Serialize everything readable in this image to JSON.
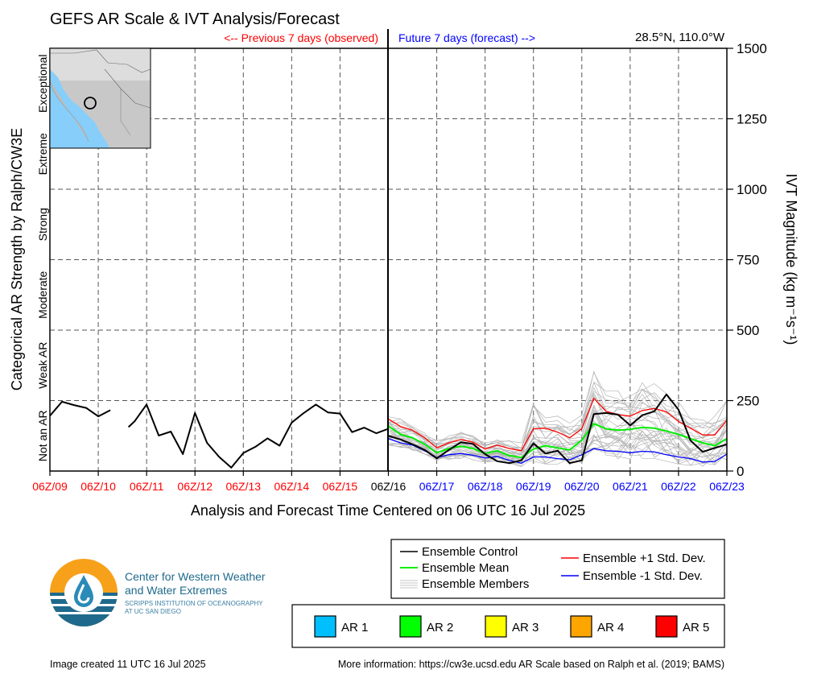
{
  "header": {
    "title": "GEFS AR Scale & IVT Analysis/Forecast",
    "prev_label": "<-- Previous 7 days (observed)",
    "future_label": "Future 7 days (forecast) -->",
    "location": "28.5°N, 110.0°W"
  },
  "axes": {
    "x_title": "Analysis and Forecast Time Centered on 06 UTC 16 Jul 2025",
    "left_title": "Categorical AR Strength by Ralph/CW3E",
    "right_title": "IVT Magnitude (kg m⁻¹s⁻¹)",
    "category_labels": [
      "Not an AR",
      "Weak AR",
      "Moderate",
      "Strong",
      "Extreme",
      "Exceptional"
    ],
    "y_ticks": [
      "0",
      "250",
      "500",
      "750",
      "1000",
      "1250",
      "1500"
    ],
    "x_ticks": [
      {
        "label": "06Z/09",
        "color": "#ff0000"
      },
      {
        "label": "06Z/10",
        "color": "#ff0000"
      },
      {
        "label": "06Z/11",
        "color": "#ff0000"
      },
      {
        "label": "06Z/12",
        "color": "#ff0000"
      },
      {
        "label": "06Z/13",
        "color": "#ff0000"
      },
      {
        "label": "06Z/14",
        "color": "#ff0000"
      },
      {
        "label": "06Z/15",
        "color": "#ff0000"
      },
      {
        "label": "06Z/16",
        "color": "#000000"
      },
      {
        "label": "06Z/17",
        "color": "#0000ff"
      },
      {
        "label": "06Z/18",
        "color": "#0000ff"
      },
      {
        "label": "06Z/19",
        "color": "#0000ff"
      },
      {
        "label": "06Z/20",
        "color": "#0000ff"
      },
      {
        "label": "06Z/21",
        "color": "#0000ff"
      },
      {
        "label": "06Z/22",
        "color": "#0000ff"
      },
      {
        "label": "06Z/23",
        "color": "#0000ff"
      }
    ]
  },
  "legend": {
    "control": "Ensemble Control",
    "mean": "Ensemble Mean",
    "members": "Ensemble Members",
    "plus_sd": "Ensemble +1 Std. Dev.",
    "minus_sd": "Ensemble -1 Std. Dev."
  },
  "ar_legend": [
    {
      "label": "AR 1",
      "color": "#00bfff"
    },
    {
      "label": "AR 2",
      "color": "#00ff00"
    },
    {
      "label": "AR 3",
      "color": "#ffff00"
    },
    {
      "label": "AR 4",
      "color": "#ffa500"
    },
    {
      "label": "AR 5",
      "color": "#ff0000"
    }
  ],
  "logo": {
    "line1": "Center for Western Weather",
    "line2": "and Water Extremes",
    "line3": "SCRIPPS INSTITUTION OF OCEANOGRAPHY",
    "line4": "AT UC SAN DIEGO"
  },
  "footer": {
    "created": "Image created 11 UTC 16 Jul 2025",
    "info": "More information: https://cw3e.ucsd.edu AR Scale based on Ralph et al. (2019; BAMS)"
  },
  "chart_data": {
    "type": "line",
    "x_units": "days relative to 06Z/16 Jul 2025",
    "ylim": [
      0,
      1500
    ],
    "xlim": [
      -7,
      7
    ],
    "category_thresholds": [
      250,
      500,
      750,
      1000,
      1250
    ],
    "colors": {
      "control": "#000000",
      "mean": "#00ee00",
      "members": "#b4b4b4",
      "plus_sd": "#ff0000",
      "minus_sd": "#0000ff"
    },
    "series": [
      {
        "name": "Ensemble Control",
        "segments": [
          {
            "x": [
              -7,
              -6.75,
              -6.5,
              -6.25,
              -6,
              -5.75,
              -5.5,
              -5.25
            ],
            "y": [
              196,
              246,
              234,
              224,
              194,
              216,
              null,
              null
            ]
          },
          {
            "x": [
              -5.75
            ],
            "y": [
              null
            ]
          },
          {
            "x": [
              -5.375,
              -5.25,
              -5,
              -4.75,
              -4.5,
              -4.25,
              -4,
              -3.75,
              -3.5,
              -3.25,
              -3,
              -2.75,
              -2.5,
              -2.25,
              -2,
              -1.75,
              -1.5,
              -1.25,
              -1,
              -0.75,
              -0.5,
              -0.25,
              0
            ],
            "y": [
              156,
              176,
              236,
              126,
              140,
              60,
              206,
              100,
              50,
              12,
              64,
              86,
              116,
              90,
              172,
              206,
              236,
              208,
              204,
              138,
              154,
              134,
              150
            ]
          }
        ]
      },
      {
        "name": "Ensemble Control",
        "x": [
          0,
          0.25,
          0.5,
          0.75,
          1,
          1.25,
          1.5,
          1.75,
          2,
          2.25,
          2.5,
          2.75,
          3,
          3.25,
          3.5,
          3.75,
          4,
          4.25,
          4.5,
          4.75,
          5,
          5.25,
          5.5,
          5.75,
          6,
          6.25,
          6.5,
          6.75,
          7
        ],
        "y": [
          125,
          112,
          95,
          75,
          45,
          75,
          102,
          96,
          60,
          35,
          28,
          38,
          98,
          62,
          72,
          28,
          38,
          202,
          206,
          200,
          162,
          198,
          212,
          272,
          218,
          108,
          68,
          82,
          95
        ]
      },
      {
        "name": "Ensemble Mean",
        "x": [
          0,
          0.25,
          0.5,
          0.75,
          1,
          1.25,
          1.5,
          1.75,
          2,
          2.25,
          2.5,
          2.75,
          3,
          3.25,
          3.5,
          3.75,
          4,
          4.25,
          4.5,
          4.75,
          5,
          5.25,
          5.5,
          5.75,
          6,
          6.25,
          6.5,
          6.75,
          7
        ],
        "y": [
          160,
          130,
          118,
          95,
          65,
          80,
          88,
          80,
          62,
          72,
          55,
          48,
          78,
          90,
          82,
          75,
          110,
          168,
          150,
          145,
          148,
          155,
          152,
          142,
          130,
          115,
          100,
          90,
          115
        ]
      },
      {
        "name": "Ensemble +1 Std. Dev.",
        "x": [
          0,
          0.25,
          0.5,
          0.75,
          1,
          1.25,
          1.5,
          1.75,
          2,
          2.25,
          2.5,
          2.75,
          3,
          3.25,
          3.5,
          3.75,
          4,
          4.25,
          4.5,
          4.75,
          5,
          5.25,
          5.5,
          5.75,
          6,
          6.25,
          6.5,
          6.75,
          7
        ],
        "y": [
          185,
          158,
          145,
          118,
          82,
          100,
          112,
          102,
          78,
          92,
          80,
          72,
          150,
          152,
          138,
          118,
          150,
          258,
          212,
          200,
          195,
          215,
          222,
          210,
          176,
          152,
          128,
          128,
          180
        ]
      },
      {
        "name": "Ensemble -1 Std. Dev.",
        "x": [
          0,
          0.25,
          0.5,
          0.75,
          1,
          1.25,
          1.5,
          1.75,
          2,
          2.25,
          2.5,
          2.75,
          3,
          3.25,
          3.5,
          3.75,
          4,
          4.25,
          4.5,
          4.75,
          5,
          5.25,
          5.5,
          5.75,
          6,
          6.25,
          6.5,
          6.75,
          7
        ],
        "y": [
          115,
          100,
          92,
          72,
          48,
          58,
          62,
          56,
          46,
          52,
          38,
          28,
          50,
          50,
          44,
          40,
          58,
          80,
          72,
          70,
          65,
          70,
          68,
          58,
          50,
          44,
          32,
          34,
          60
        ]
      }
    ],
    "members_band": {
      "x": [
        0,
        0.25,
        0.5,
        0.75,
        1,
        1.25,
        1.5,
        1.75,
        2,
        2.25,
        2.5,
        2.75,
        3,
        3.25,
        3.5,
        3.75,
        4,
        4.25,
        4.5,
        4.75,
        5,
        5.25,
        5.5,
        5.75,
        6,
        6.25,
        6.5,
        6.75,
        7
      ],
      "low": [
        90,
        80,
        70,
        60,
        30,
        40,
        45,
        40,
        30,
        35,
        20,
        15,
        30,
        25,
        25,
        20,
        25,
        60,
        40,
        40,
        40,
        45,
        45,
        35,
        25,
        20,
        15,
        15,
        40
      ],
      "high": [
        195,
        185,
        165,
        140,
        110,
        125,
        140,
        125,
        105,
        115,
        110,
        100,
        240,
        190,
        195,
        170,
        200,
        365,
        290,
        285,
        300,
        350,
        310,
        275,
        245,
        200,
        190,
        200,
        250
      ]
    }
  }
}
